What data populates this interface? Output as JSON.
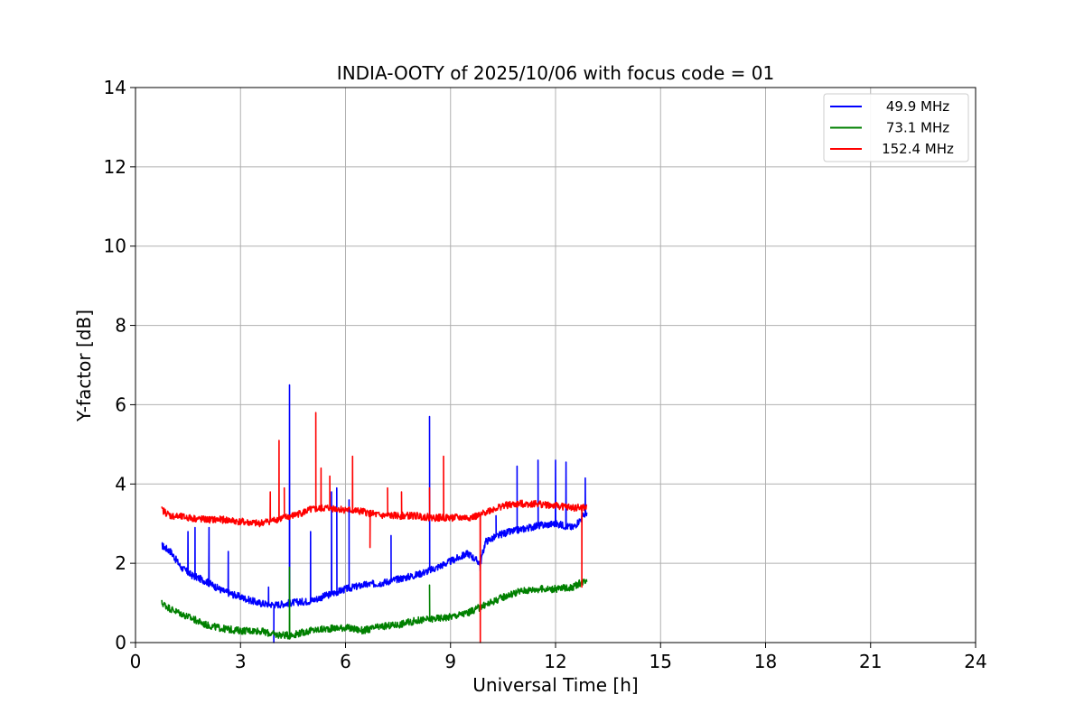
{
  "chart_data": {
    "type": "line",
    "title": "INDIA-OOTY of 2025/10/06 with focus code = 01",
    "xlabel": "Universal Time [h]",
    "ylabel": "Y-factor [dB]",
    "xlim": [
      0,
      24
    ],
    "ylim": [
      0,
      14
    ],
    "xticks": [
      0,
      3,
      6,
      9,
      12,
      15,
      18,
      21,
      24
    ],
    "yticks": [
      0,
      2,
      4,
      6,
      8,
      10,
      12,
      14
    ],
    "grid": true,
    "legend_position": "top-right",
    "series": [
      {
        "name": " 49.9 MHz",
        "color": "#0000ff",
        "x": [
          0.75,
          1.0,
          1.3,
          1.6,
          2.0,
          2.5,
          3.0,
          3.5,
          4.0,
          4.4,
          5.0,
          5.5,
          6.0,
          6.5,
          7.0,
          7.5,
          8.0,
          8.5,
          9.0,
          9.5,
          9.85,
          10.0,
          10.5,
          11.0,
          11.5,
          12.0,
          12.5,
          12.9
        ],
        "values": [
          2.45,
          2.3,
          1.9,
          1.7,
          1.55,
          1.3,
          1.15,
          1.0,
          0.95,
          1.0,
          1.05,
          1.2,
          1.35,
          1.45,
          1.5,
          1.6,
          1.7,
          1.85,
          2.05,
          2.25,
          2.0,
          2.55,
          2.75,
          2.85,
          2.95,
          3.0,
          2.9,
          3.3
        ],
        "spikes": [
          [
            1.5,
            2.8
          ],
          [
            1.7,
            2.9
          ],
          [
            2.1,
            2.9
          ],
          [
            2.65,
            2.3
          ],
          [
            3.8,
            1.4
          ],
          [
            3.95,
            0.0
          ],
          [
            4.4,
            6.5
          ],
          [
            5.0,
            2.8
          ],
          [
            5.6,
            3.8
          ],
          [
            5.75,
            3.9
          ],
          [
            6.1,
            3.6
          ],
          [
            7.3,
            2.7
          ],
          [
            8.4,
            5.7
          ],
          [
            9.85,
            1.8
          ],
          [
            10.3,
            3.2
          ],
          [
            10.9,
            4.45
          ],
          [
            11.5,
            4.6
          ],
          [
            12.0,
            4.6
          ],
          [
            12.3,
            4.55
          ],
          [
            12.85,
            4.15
          ]
        ]
      },
      {
        "name": " 73.1 MHz",
        "color": "#008000",
        "x": [
          0.75,
          1.0,
          1.5,
          2.0,
          2.5,
          3.0,
          3.5,
          4.0,
          4.4,
          5.0,
          5.5,
          6.0,
          6.5,
          7.0,
          7.5,
          8.0,
          8.5,
          9.0,
          9.5,
          10.0,
          10.5,
          11.0,
          11.5,
          12.0,
          12.5,
          12.9
        ],
        "values": [
          1.0,
          0.85,
          0.65,
          0.45,
          0.35,
          0.3,
          0.3,
          0.2,
          0.18,
          0.3,
          0.35,
          0.38,
          0.3,
          0.4,
          0.45,
          0.55,
          0.6,
          0.65,
          0.75,
          0.95,
          1.15,
          1.3,
          1.35,
          1.35,
          1.4,
          1.6
        ],
        "spikes": [
          [
            4.4,
            1.9
          ],
          [
            8.4,
            1.45
          ]
        ]
      },
      {
        "name": "152.4 MHz",
        "color": "#ff0000",
        "x": [
          0.75,
          1.0,
          1.5,
          2.0,
          2.5,
          3.0,
          3.5,
          4.0,
          4.5,
          5.0,
          5.5,
          6.0,
          6.5,
          7.0,
          7.5,
          8.0,
          8.5,
          9.0,
          9.5,
          9.85,
          10.0,
          10.5,
          11.0,
          11.5,
          12.0,
          12.5,
          12.9
        ],
        "values": [
          3.35,
          3.2,
          3.15,
          3.1,
          3.1,
          3.05,
          3.0,
          3.1,
          3.2,
          3.35,
          3.4,
          3.35,
          3.3,
          3.2,
          3.2,
          3.2,
          3.15,
          3.15,
          3.15,
          3.2,
          3.3,
          3.45,
          3.5,
          3.5,
          3.45,
          3.4,
          3.4
        ],
        "spikes": [
          [
            3.85,
            3.8
          ],
          [
            4.1,
            5.1
          ],
          [
            4.25,
            3.9
          ],
          [
            5.15,
            5.8
          ],
          [
            5.3,
            4.4
          ],
          [
            5.55,
            4.2
          ],
          [
            6.2,
            4.7
          ],
          [
            6.7,
            2.4
          ],
          [
            7.2,
            3.9
          ],
          [
            7.6,
            3.8
          ],
          [
            8.4,
            3.9
          ],
          [
            8.8,
            4.7
          ],
          [
            9.85,
            0.0
          ],
          [
            12.75,
            1.4
          ]
        ]
      }
    ]
  }
}
